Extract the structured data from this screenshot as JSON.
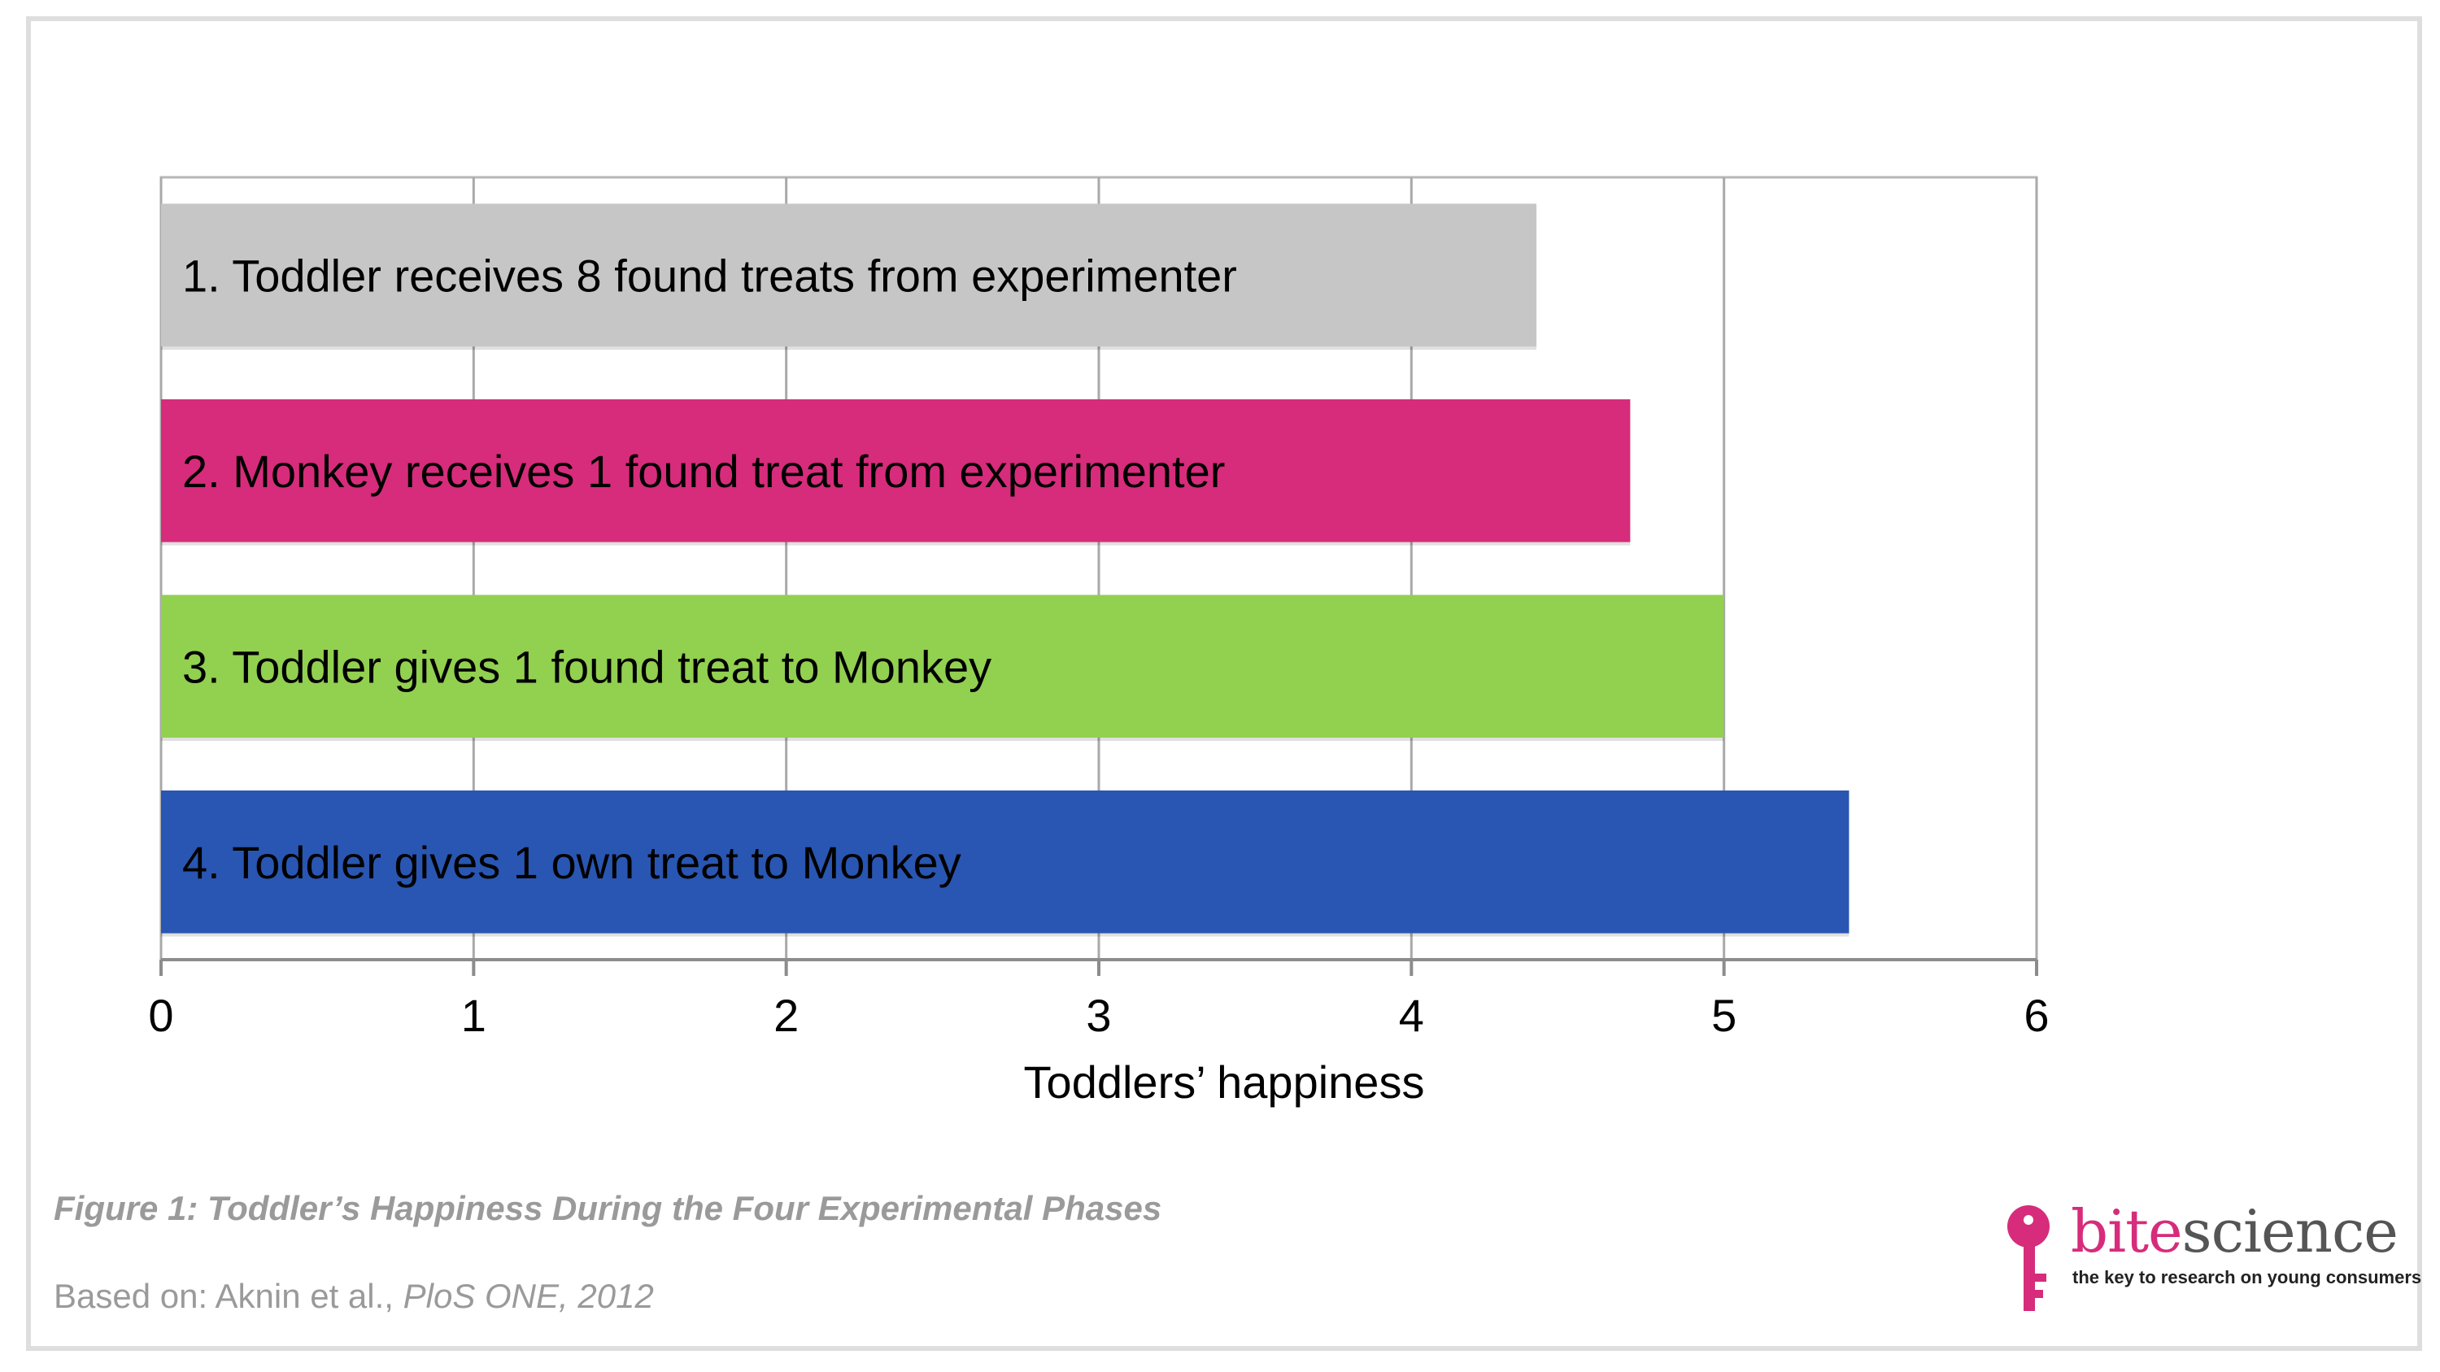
{
  "chart_data": {
    "type": "bar",
    "orientation": "horizontal",
    "categories": [
      "1. Toddler receives 8 found treats from experimenter",
      "2. Monkey receives 1 found treat from experimenter",
      "3. Toddler gives 1 found treat to Monkey",
      "4. Toddler gives 1 own treat to Monkey"
    ],
    "values": [
      4.4,
      4.7,
      5.0,
      5.4
    ],
    "colors": [
      "#c6c6c6",
      "#d62c7b",
      "#92d050",
      "#2956b2"
    ],
    "xlabel": "Toddlers’ happiness",
    "xlim": [
      0,
      6
    ],
    "xticks": [
      "0",
      "1",
      "2",
      "3",
      "4",
      "5",
      "6"
    ],
    "grid": true
  },
  "caption": {
    "figure": "Figure 1: Toddler’s Happiness During the Four Experimental Phases",
    "source_prefix": "Based on: Aknin et al., ",
    "source_italic": "PloS ONE, 2012"
  },
  "logo": {
    "word_part1": "bite",
    "word_part2": "science",
    "tagline": "the key to research on young consumers",
    "icon": "key-icon"
  }
}
